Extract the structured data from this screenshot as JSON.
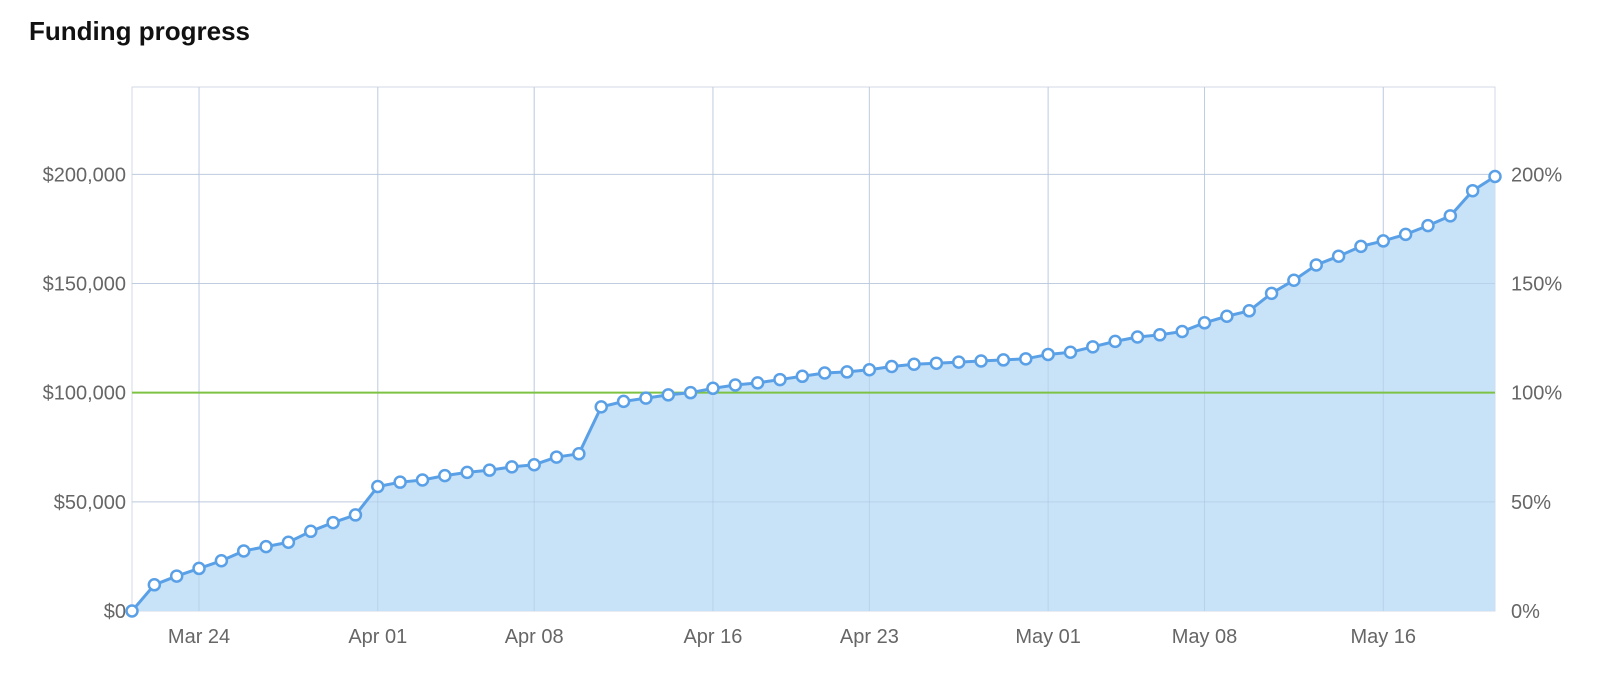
{
  "title": "Funding progress",
  "chart_data": {
    "type": "area",
    "title": "Funding progress",
    "xlabel": "",
    "ylabel": "",
    "x_tick_labels": [
      {
        "date": "2014-03-24",
        "label": "Mar 24"
      },
      {
        "date": "2014-04-01",
        "label": "Apr 01"
      },
      {
        "date": "2014-04-08",
        "label": "Apr 08"
      },
      {
        "date": "2014-04-16",
        "label": "Apr 16"
      },
      {
        "date": "2014-04-23",
        "label": "Apr 23"
      },
      {
        "date": "2014-05-01",
        "label": "May 01"
      },
      {
        "date": "2014-05-08",
        "label": "May 08"
      },
      {
        "date": "2014-05-16",
        "label": "May 16"
      }
    ],
    "y_left_ticks": [
      {
        "value": 0,
        "label": "$0"
      },
      {
        "value": 50000,
        "label": "$50,000"
      },
      {
        "value": 100000,
        "label": "$100,000"
      },
      {
        "value": 150000,
        "label": "$150,000"
      },
      {
        "value": 200000,
        "label": "$200,000"
      }
    ],
    "y_right_ticks": [
      {
        "value": 0,
        "label": "0%"
      },
      {
        "value": 50000,
        "label": "50%"
      },
      {
        "value": 100000,
        "label": "100%"
      },
      {
        "value": 150000,
        "label": "150%"
      },
      {
        "value": 200000,
        "label": "200%"
      }
    ],
    "ylim": [
      0,
      240000
    ],
    "xlim": [
      "2014-03-21",
      "2014-05-21"
    ],
    "grid": true,
    "goal_line": {
      "value": 100000,
      "color": "#7dc242"
    },
    "colors": {
      "line": "#5aa0e6",
      "fill": "#c5e0f8",
      "marker_fill": "#ffffff",
      "grid": "#d3d9e6"
    },
    "series": [
      {
        "x": [
          "2014-03-21",
          "2014-03-22",
          "2014-03-23",
          "2014-03-24",
          "2014-03-25",
          "2014-03-26",
          "2014-03-27",
          "2014-03-28",
          "2014-03-29",
          "2014-03-30",
          "2014-03-31",
          "2014-04-01",
          "2014-04-02",
          "2014-04-03",
          "2014-04-04",
          "2014-04-05",
          "2014-04-06",
          "2014-04-07",
          "2014-04-08",
          "2014-04-09",
          "2014-04-10",
          "2014-04-11",
          "2014-04-12",
          "2014-04-13",
          "2014-04-14",
          "2014-04-15",
          "2014-04-16",
          "2014-04-17",
          "2014-04-18",
          "2014-04-19",
          "2014-04-20",
          "2014-04-21",
          "2014-04-22",
          "2014-04-23",
          "2014-04-24",
          "2014-04-25",
          "2014-04-26",
          "2014-04-27",
          "2014-04-28",
          "2014-04-29",
          "2014-04-30",
          "2014-05-01",
          "2014-05-02",
          "2014-05-03",
          "2014-05-04",
          "2014-05-05",
          "2014-05-06",
          "2014-05-07",
          "2014-05-08",
          "2014-05-09",
          "2014-05-10",
          "2014-05-11",
          "2014-05-12",
          "2014-05-13",
          "2014-05-14",
          "2014-05-15",
          "2014-05-16",
          "2014-05-17",
          "2014-05-18",
          "2014-05-19",
          "2014-05-20",
          "2014-05-21"
        ],
        "values": [
          0,
          12000,
          16000,
          19500,
          23000,
          27500,
          29500,
          31500,
          36500,
          40500,
          44000,
          57000,
          59000,
          60000,
          62000,
          63500,
          64500,
          66000,
          67000,
          70500,
          72000,
          93500,
          96000,
          97500,
          99000,
          100000,
          102000,
          103500,
          104500,
          106000,
          107500,
          109000,
          109500,
          110500,
          112000,
          113000,
          113500,
          114000,
          114500,
          115000,
          115500,
          117500,
          118500,
          121000,
          123500,
          125500,
          126500,
          128000,
          132000,
          135000,
          137500,
          145500,
          151500,
          158500,
          162500,
          167000,
          169500,
          172500,
          176500,
          181000,
          192500,
          199000
        ]
      }
    ]
  }
}
